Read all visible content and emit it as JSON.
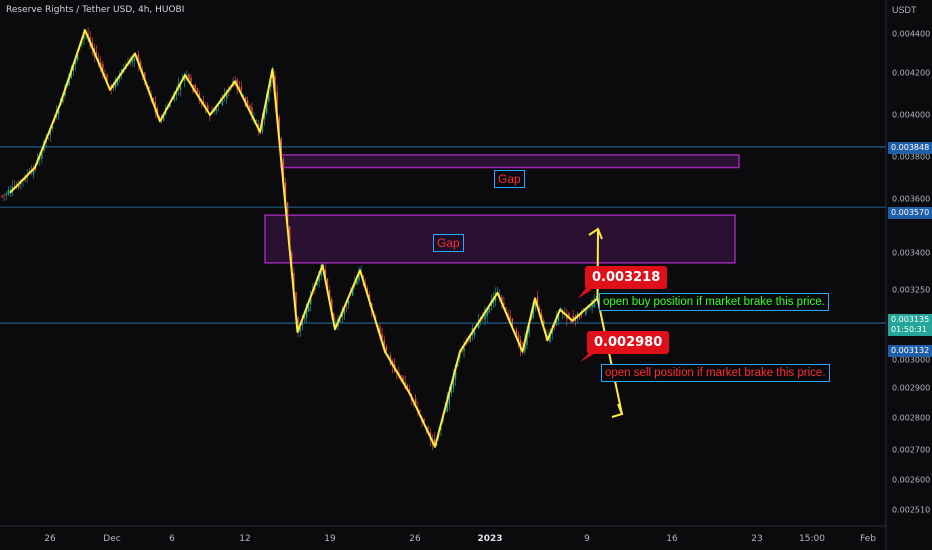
{
  "header": {
    "title": "Reserve Rights / Tether USD, 4h, HUOBI",
    "currency": "USDT"
  },
  "price_axis": {
    "ticks": [
      "0.004400",
      "0.004200",
      "0.004000",
      "0.003800",
      "0.003600",
      "0.003400",
      "0.003250",
      "0.003000",
      "0.002900",
      "0.002800",
      "0.002700",
      "0.002600",
      "0.002510"
    ],
    "tags": {
      "level_high": "0.003848",
      "level_mid": "0.003570",
      "current_price": "0.003135",
      "countdown": "01:50:31",
      "level_low": "0.003132"
    }
  },
  "time_axis": {
    "ticks": [
      "26",
      "Dec",
      "6",
      "12",
      "19",
      "26",
      "2023",
      "9",
      "16",
      "23",
      "15:00",
      "Feb"
    ]
  },
  "annotations": {
    "gap_upper": "Gap",
    "gap_lower": "Gap",
    "buy_price": "0.003218",
    "sell_price": "0.002980",
    "buy_note": "open buy position if market brake this price.",
    "sell_note": "open sell position if market brake this price."
  },
  "colors": {
    "background": "#0b0b0e",
    "bull_candle": "#26a69a",
    "bear_candle": "#ef5350",
    "zigzag": "#ffeb3b",
    "gap_zone": "#9c27b0",
    "level_line": "#2a7fb8",
    "callout_red": "#e0101a",
    "buy_text": "#39ff24",
    "sell_text": "#ff2d2d",
    "current_price_tag": "#26a69a",
    "level_tag": "#1e5fa8"
  },
  "chart_data": {
    "type": "line",
    "title": "Reserve Rights / Tether USD, 4h, HUOBI",
    "ylabel": "USDT",
    "ylim": [
      0.00246,
      0.00452
    ],
    "series": [
      {
        "x": [
          "Nov 23",
          "Nov 25",
          "Nov 27",
          "Nov 29",
          "Dec 1",
          "Dec 3",
          "Dec 5",
          "Dec 7",
          "Dec 9",
          "Dec 11",
          "Dec 13",
          "Dec 14",
          "Dec 16",
          "Dec 18",
          "Dec 19",
          "Dec 21",
          "Dec 23",
          "Dec 25",
          "Dec 27",
          "Dec 29",
          "Jan 1",
          "Jan 3",
          "Jan 4",
          "Jan 5",
          "Jan 6",
          "Jan 7",
          "Jan 9"
        ],
        "values": [
          0.00363,
          0.00375,
          0.00405,
          0.00442,
          0.00412,
          0.0043,
          0.00397,
          0.00419,
          0.004,
          0.00416,
          0.00392,
          0.00422,
          0.0031,
          0.00335,
          0.00311,
          0.00333,
          0.00303,
          0.00288,
          0.00271,
          0.00303,
          0.00324,
          0.00303,
          0.00322,
          0.00307,
          0.00318,
          0.00314,
          0.00322
        ]
      }
    ],
    "projected_moves": [
      {
        "from": "Jan 7",
        "to": "Jan 10",
        "direction": "up"
      },
      {
        "from": "Jan 7",
        "to": "Jan 10",
        "direction": "down"
      }
    ],
    "zones": [
      {
        "label": "Gap",
        "low": 0.00375,
        "high": 0.00381
      },
      {
        "label": "Gap",
        "low": 0.00336,
        "high": 0.00354
      }
    ],
    "levels": [
      0.003848,
      0.00357,
      0.003132
    ],
    "grid": false
  }
}
